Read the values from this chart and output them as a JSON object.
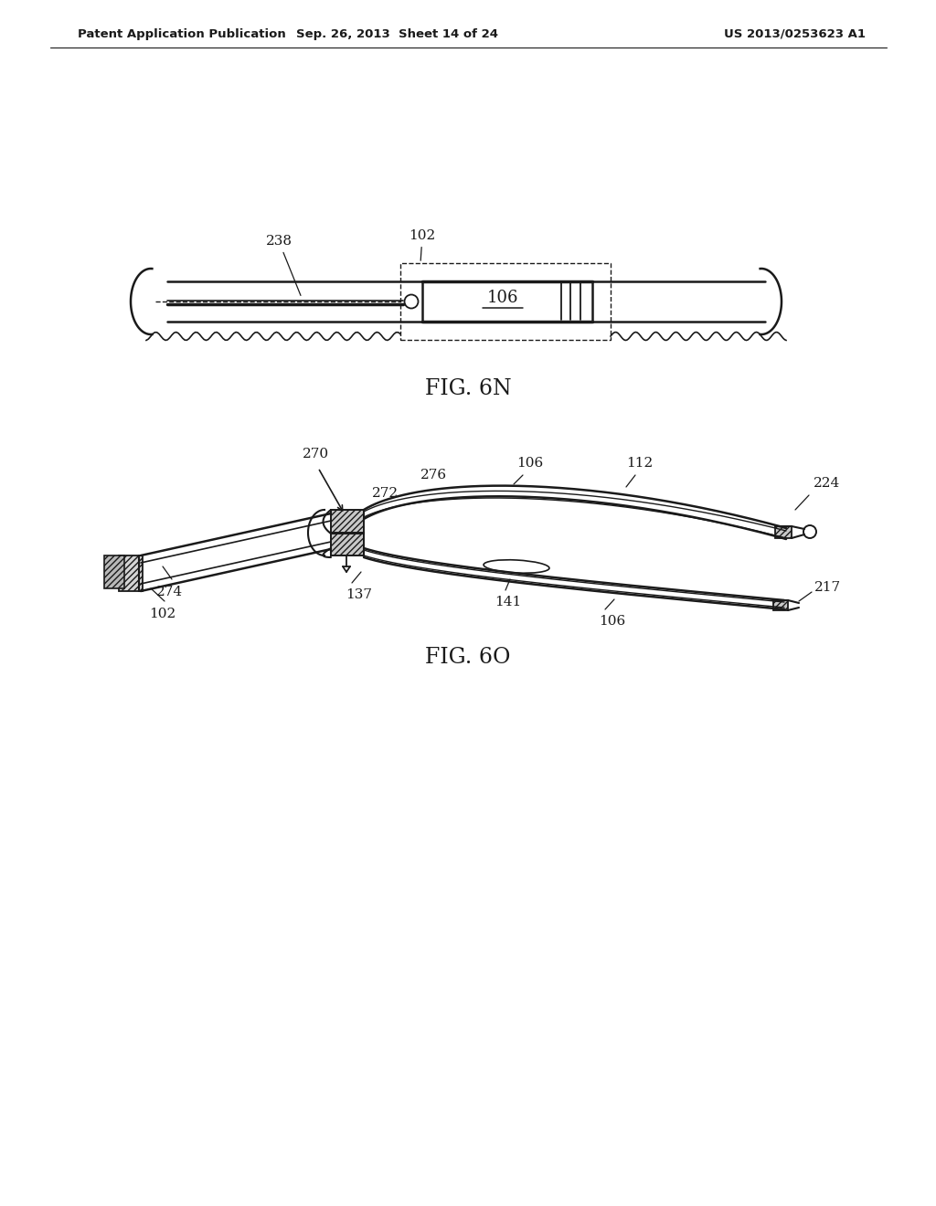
{
  "background_color": "#ffffff",
  "header_left": "Patent Application Publication",
  "header_mid": "Sep. 26, 2013  Sheet 14 of 24",
  "header_right": "US 2013/0253623 A1",
  "fig1_label": "FIG. 6N",
  "fig2_label": "FIG. 6O",
  "line_color": "#1a1a1a",
  "text_color": "#1a1a1a"
}
